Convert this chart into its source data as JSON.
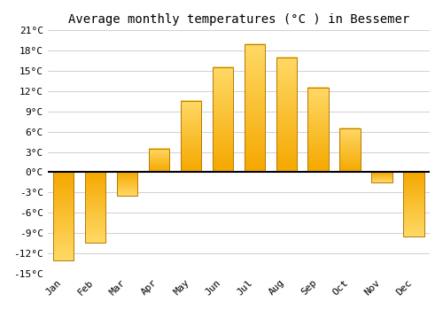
{
  "title": "Average monthly temperatures (°C ) in Bessemer",
  "months": [
    "Jan",
    "Feb",
    "Mar",
    "Apr",
    "May",
    "Jun",
    "Jul",
    "Aug",
    "Sep",
    "Oct",
    "Nov",
    "Dec"
  ],
  "values": [
    -13,
    -10.5,
    -3.5,
    3.5,
    10.5,
    15.5,
    19,
    17,
    12.5,
    6.5,
    -1.5,
    -9.5
  ],
  "bar_color_bottom": "#F5A800",
  "bar_color_top": "#FFD966",
  "bar_edge_color": "#B87800",
  "background_color": "#FFFFFF",
  "grid_color": "#D0D0D0",
  "ylim": [
    -15,
    21
  ],
  "yticks": [
    -15,
    -12,
    -9,
    -6,
    -3,
    0,
    3,
    6,
    9,
    12,
    15,
    18,
    21
  ],
  "ytick_labels": [
    "-15°C",
    "-12°C",
    "-9°C",
    "-6°C",
    "-3°C",
    "0°C",
    "3°C",
    "6°C",
    "9°C",
    "12°C",
    "15°C",
    "18°C",
    "21°C"
  ],
  "title_fontsize": 10,
  "tick_fontsize": 8,
  "bar_width": 0.65
}
